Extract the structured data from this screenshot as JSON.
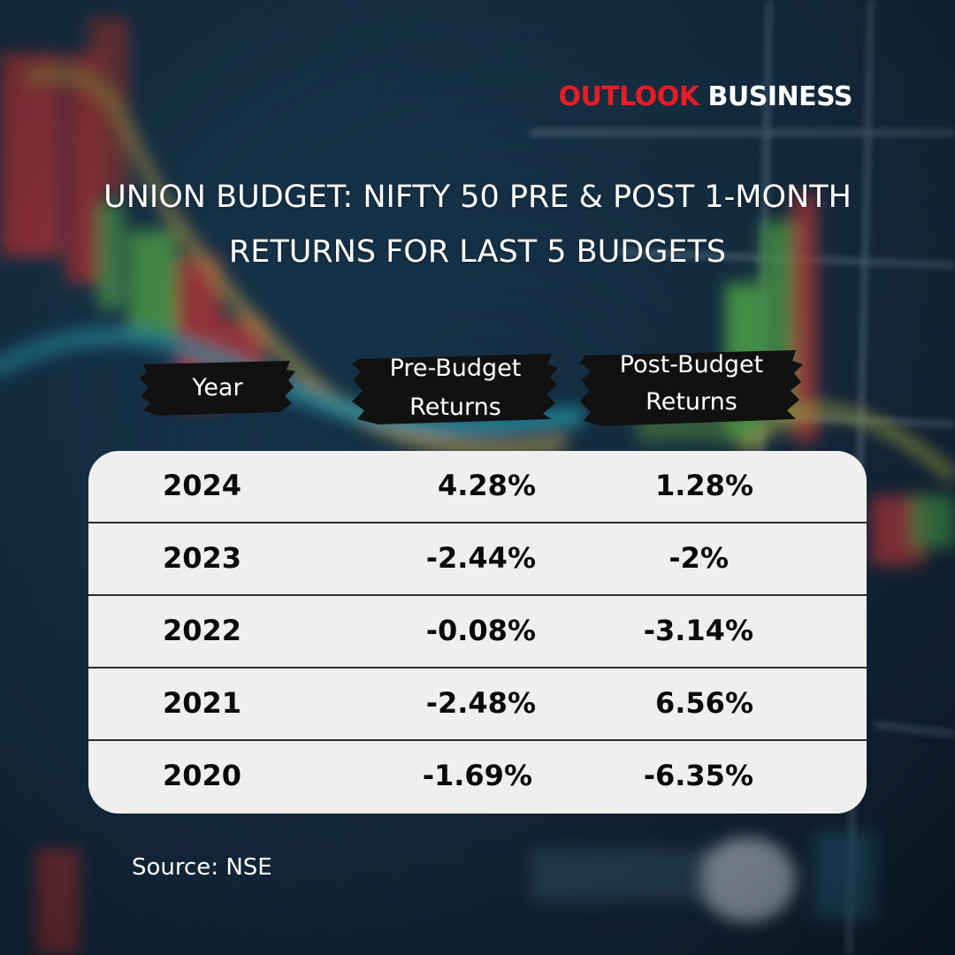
{
  "brand": {
    "part1": "OUTLOOK",
    "part2": "BUSINESS",
    "color_red": "#ea1c24",
    "color_white": "#ffffff"
  },
  "title": {
    "line1": "UNION BUDGET: NIFTY 50 PRE & POST 1-MONTH",
    "line2": "RETURNS FOR LAST 5 BUDGETS"
  },
  "table_headers": {
    "year": "Year",
    "pre_line1": "Pre-Budget",
    "pre_line2": "Returns",
    "post_line1": "Post-Budget",
    "post_line2": "Returns"
  },
  "rows": [
    {
      "year": "2024",
      "pre": "4.28%",
      "post": "1.28%"
    },
    {
      "year": "2023",
      "pre": "-2.44%",
      "post": "-2%"
    },
    {
      "year": "2022",
      "pre": "-0.08%",
      "post": "-3.14%"
    },
    {
      "year": "2021",
      "pre": "-2.48%",
      "post": "6.56%"
    },
    {
      "year": "2020",
      "pre": "-1.69%",
      "post": "-6.35%"
    }
  ],
  "source": "Source: NSE",
  "chart_data": {
    "type": "table",
    "columns": [
      "Year",
      "Pre-Budget Returns",
      "Post-Budget Returns"
    ],
    "rows": [
      [
        "2024",
        4.28,
        1.28
      ],
      [
        "2023",
        -2.44,
        -2
      ],
      [
        "2022",
        -0.08,
        -3.14
      ],
      [
        "2021",
        -2.48,
        6.56
      ],
      [
        "2020",
        -1.69,
        -6.35
      ]
    ],
    "unit": "%"
  }
}
